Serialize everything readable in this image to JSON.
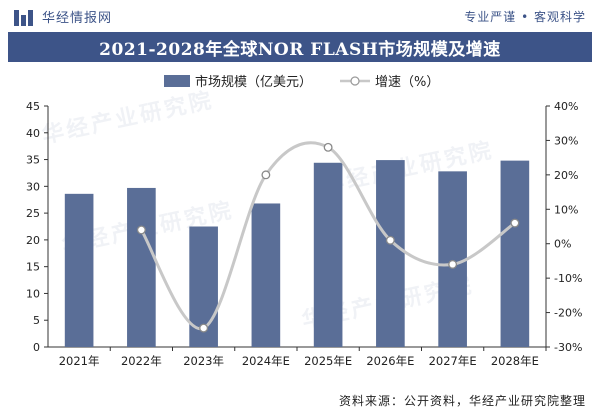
{
  "header": {
    "brand_name": "华经情报网",
    "tagline": "专业严谨 • 客观科学"
  },
  "title": "2021-2028年全球NOR FLASH市场规模及增速",
  "source": "资料来源：公开资料，华经产业研究院整理",
  "watermark_text": "华经产业研究院",
  "colors": {
    "bar": "#5a6e97",
    "line": "#c8c8c8",
    "title_bg": "#3d5488"
  },
  "chart_data": {
    "type": "bar",
    "categories": [
      "2021年",
      "2022年",
      "2023年",
      "2024年E",
      "2025年E",
      "2026年E",
      "2027年E",
      "2028年E"
    ],
    "series": [
      {
        "name": "市场规模（亿美元）",
        "type": "bar",
        "axis": "left",
        "values": [
          28.6,
          29.7,
          22.5,
          26.8,
          34.4,
          34.9,
          32.8,
          34.8
        ]
      },
      {
        "name": "增速（%）",
        "type": "line",
        "axis": "right",
        "values": [
          null,
          4,
          -24.5,
          20,
          28,
          1,
          -6,
          6
        ]
      }
    ],
    "y_left": {
      "min": 0,
      "max": 45,
      "ticks": [
        "0",
        "5",
        "10",
        "15",
        "20",
        "25",
        "30",
        "35",
        "40",
        "45"
      ]
    },
    "y_right": {
      "min": -30,
      "max": 40,
      "ticks": [
        "-30%",
        "-20%",
        "-10%",
        "0%",
        "10%",
        "20%",
        "30%",
        "40%"
      ]
    },
    "legend_position": "top-center",
    "grid": false
  }
}
